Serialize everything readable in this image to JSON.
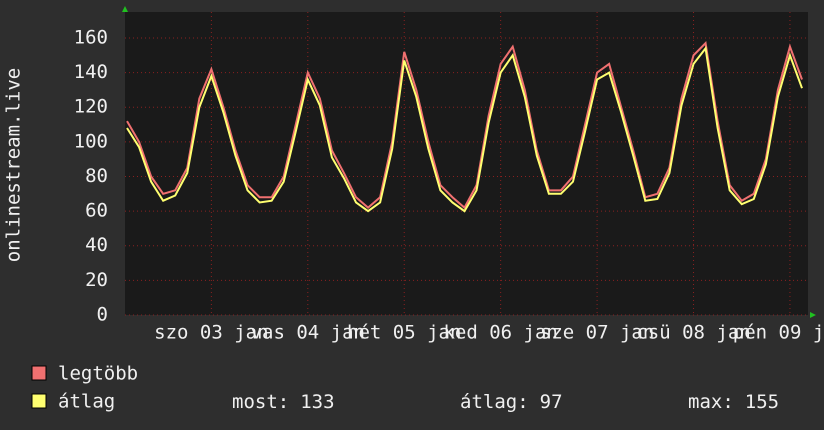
{
  "chart_data": {
    "type": "line",
    "y_label": "onlinestream.live",
    "categories": [
      null,
      null,
      null,
      null,
      null,
      null,
      null,
      "szo 03 jan",
      null,
      null,
      null,
      null,
      null,
      null,
      null,
      "vas 04 jan",
      null,
      null,
      null,
      null,
      null,
      null,
      null,
      "hét 05 jan",
      null,
      null,
      null,
      null,
      null,
      null,
      null,
      "ked 06 jan",
      null,
      null,
      null,
      null,
      null,
      null,
      null,
      "sze 07 jan",
      null,
      null,
      null,
      null,
      null,
      null,
      null,
      "csü 08 jan",
      null,
      null,
      null,
      null,
      null,
      null,
      null,
      "pén 09 jan",
      null
    ],
    "series": [
      {
        "name": "legtöbb",
        "color": "#f07070",
        "values": [
          112,
          100,
          80,
          70,
          72,
          85,
          125,
          142,
          120,
          95,
          75,
          68,
          68,
          80,
          110,
          140,
          125,
          95,
          82,
          68,
          62,
          68,
          100,
          152,
          130,
          100,
          75,
          68,
          62,
          75,
          115,
          145,
          155,
          130,
          95,
          72,
          72,
          80,
          110,
          140,
          145,
          120,
          95,
          68,
          70,
          85,
          125,
          150,
          157,
          112,
          75,
          66,
          70,
          90,
          130,
          155,
          136
        ]
      },
      {
        "name": "átlag",
        "color": "#ffff70",
        "values": [
          108,
          97,
          77,
          66,
          69,
          82,
          120,
          138,
          117,
          92,
          72,
          65,
          66,
          77,
          106,
          136,
          121,
          91,
          79,
          65,
          60,
          65,
          96,
          147,
          126,
          96,
          72,
          65,
          60,
          72,
          111,
          140,
          150,
          126,
          92,
          70,
          70,
          77,
          106,
          136,
          140,
          117,
          92,
          66,
          67,
          82,
          121,
          145,
          154,
          108,
          72,
          64,
          67,
          87,
          126,
          150,
          131
        ]
      }
    ],
    "stats": [
      {
        "label": "most:",
        "value": 133
      },
      {
        "label": "átlag:",
        "value": 97
      },
      {
        "label": "max:",
        "value": 155
      }
    ],
    "ylim": [
      0,
      175
    ],
    "yticks": [
      0,
      20,
      40,
      60,
      80,
      100,
      120,
      140,
      160
    ],
    "grid": true
  }
}
